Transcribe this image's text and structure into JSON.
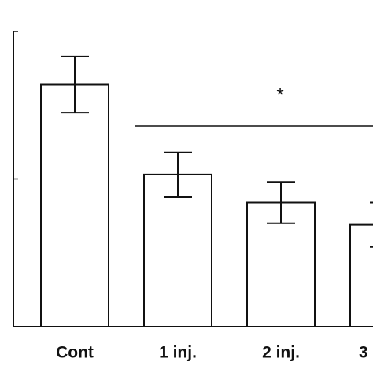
{
  "chart_data": {
    "type": "bar",
    "categories": [
      "Cont",
      "1 inj.",
      "2 inj.",
      "3"
    ],
    "values": [
      1.64,
      1.03,
      0.84,
      0.69
    ],
    "errors": [
      0.19,
      0.15,
      0.14,
      0.15
    ],
    "color": "#ffffff",
    "ylim": [
      0,
      2
    ],
    "yticks": [
      0,
      1,
      2
    ],
    "annotation": "*"
  }
}
